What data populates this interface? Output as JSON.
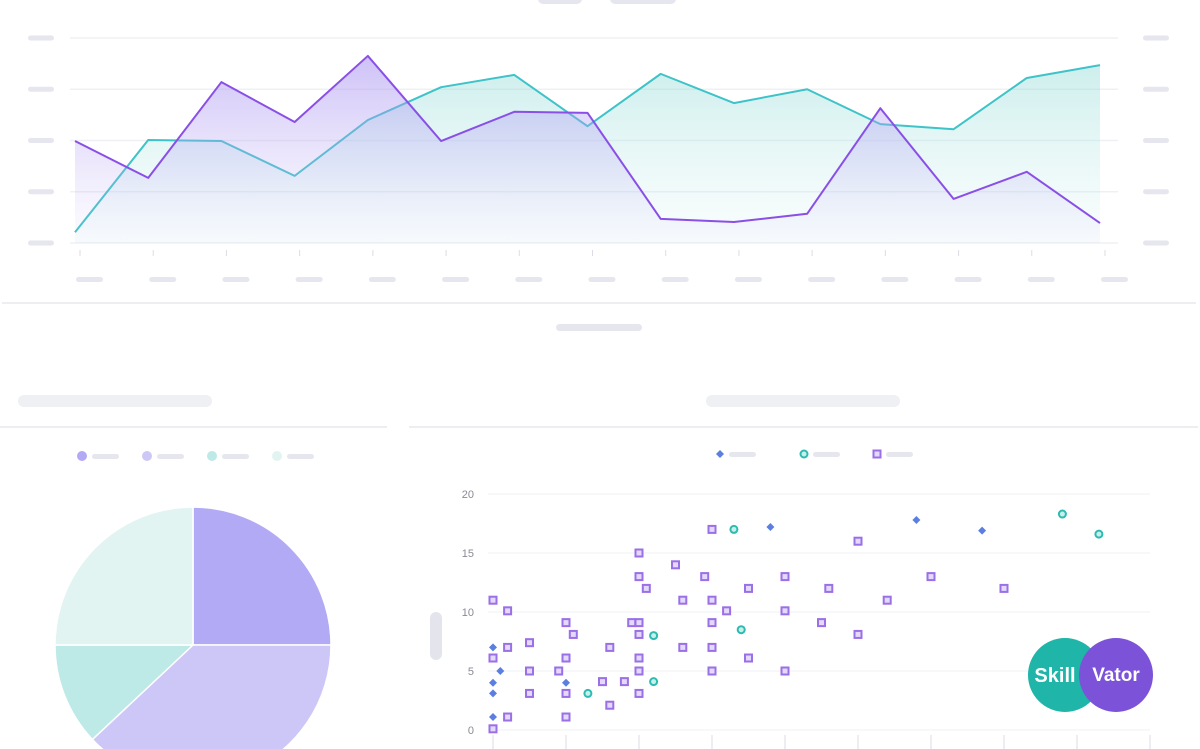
{
  "chart_data": [
    {
      "type": "line",
      "categories": [
        null,
        null,
        null,
        null,
        null,
        null,
        null,
        null,
        null,
        null,
        null,
        null,
        null,
        null,
        null
      ],
      "ylim": [
        0,
        4
      ],
      "yticks": [
        0,
        1,
        2,
        3,
        4
      ],
      "grid": true,
      "series": [
        {
          "color": "#8a4fe6",
          "values": [
            1.99,
            1.27,
            3.14,
            2.36,
            3.65,
            1.99,
            2.56,
            2.54,
            0.47,
            0.41,
            0.57,
            2.63,
            0.86,
            1.39,
            0.39
          ]
        },
        {
          "color": "#3dc3c8",
          "values": [
            0.21,
            2.01,
            1.99,
            1.31,
            2.4,
            3.04,
            3.28,
            2.28,
            3.3,
            2.73,
            3.0,
            2.32,
            2.22,
            3.22,
            3.47
          ]
        }
      ]
    },
    {
      "type": "pie",
      "values": [
        25,
        38,
        12,
        25
      ],
      "colors": [
        "#b3aaf5",
        "#cdc7f7",
        "#bde9e6",
        "#e1f4f2"
      ]
    },
    {
      "type": "scatter",
      "xlim": [
        0,
        9
      ],
      "xticks": [
        0,
        1,
        2,
        3,
        4,
        5,
        6,
        7,
        8,
        9
      ],
      "ylim": [
        0,
        20
      ],
      "yticks": [
        0,
        5,
        10,
        15,
        20
      ],
      "grid": true,
      "series": [
        {
          "color": "#5b7fe0",
          "marker": "diamond",
          "x": [
            3.8,
            5.8,
            6.7,
            0,
            0.1,
            0,
            0,
            1,
            0
          ],
          "values": [
            17.2,
            17.8,
            16.9,
            7,
            5,
            4,
            3.1,
            4,
            1.1
          ]
        },
        {
          "color": "#2bbbb0",
          "marker": "circle",
          "x": [
            3.3,
            7.8,
            8.3,
            2.2,
            3.4,
            2.2,
            1.3
          ],
          "values": [
            17,
            18.3,
            16.6,
            8,
            8.5,
            4.1,
            3.1
          ]
        },
        {
          "color": "#9b6fe6",
          "marker": "square",
          "x": [
            0,
            0.2,
            2,
            3,
            2,
            2.5,
            2.1,
            2.9,
            3.5,
            4,
            5,
            4.6,
            6,
            7,
            5.4,
            2.6,
            3,
            3.2,
            4,
            4.5,
            5,
            3,
            3,
            2.6,
            3.5,
            4,
            3,
            2,
            1.9,
            2,
            1,
            1.1,
            0.5,
            0.2,
            0,
            1,
            1.6,
            2,
            2,
            0.5,
            0.9,
            1.5,
            1.8,
            1,
            0.5,
            2,
            1.6,
            1,
            0.2,
            0
          ],
          "values": [
            11,
            10.1,
            15,
            17,
            13,
            14,
            12,
            13,
            12,
            13,
            16,
            12,
            13,
            12,
            11,
            11,
            11,
            10.1,
            10.1,
            9.1,
            8.1,
            9.1,
            7,
            7,
            6.1,
            5,
            5,
            9.1,
            9.1,
            8.1,
            9.1,
            8.1,
            7.4,
            7,
            6.1,
            6.1,
            7,
            6.1,
            5,
            5,
            5,
            4.1,
            4.1,
            3.1,
            3.1,
            3.1,
            2.1,
            1.1,
            1.1,
            0.1
          ]
        }
      ]
    }
  ],
  "logo": {
    "left": "Skill",
    "right": "Vator"
  }
}
